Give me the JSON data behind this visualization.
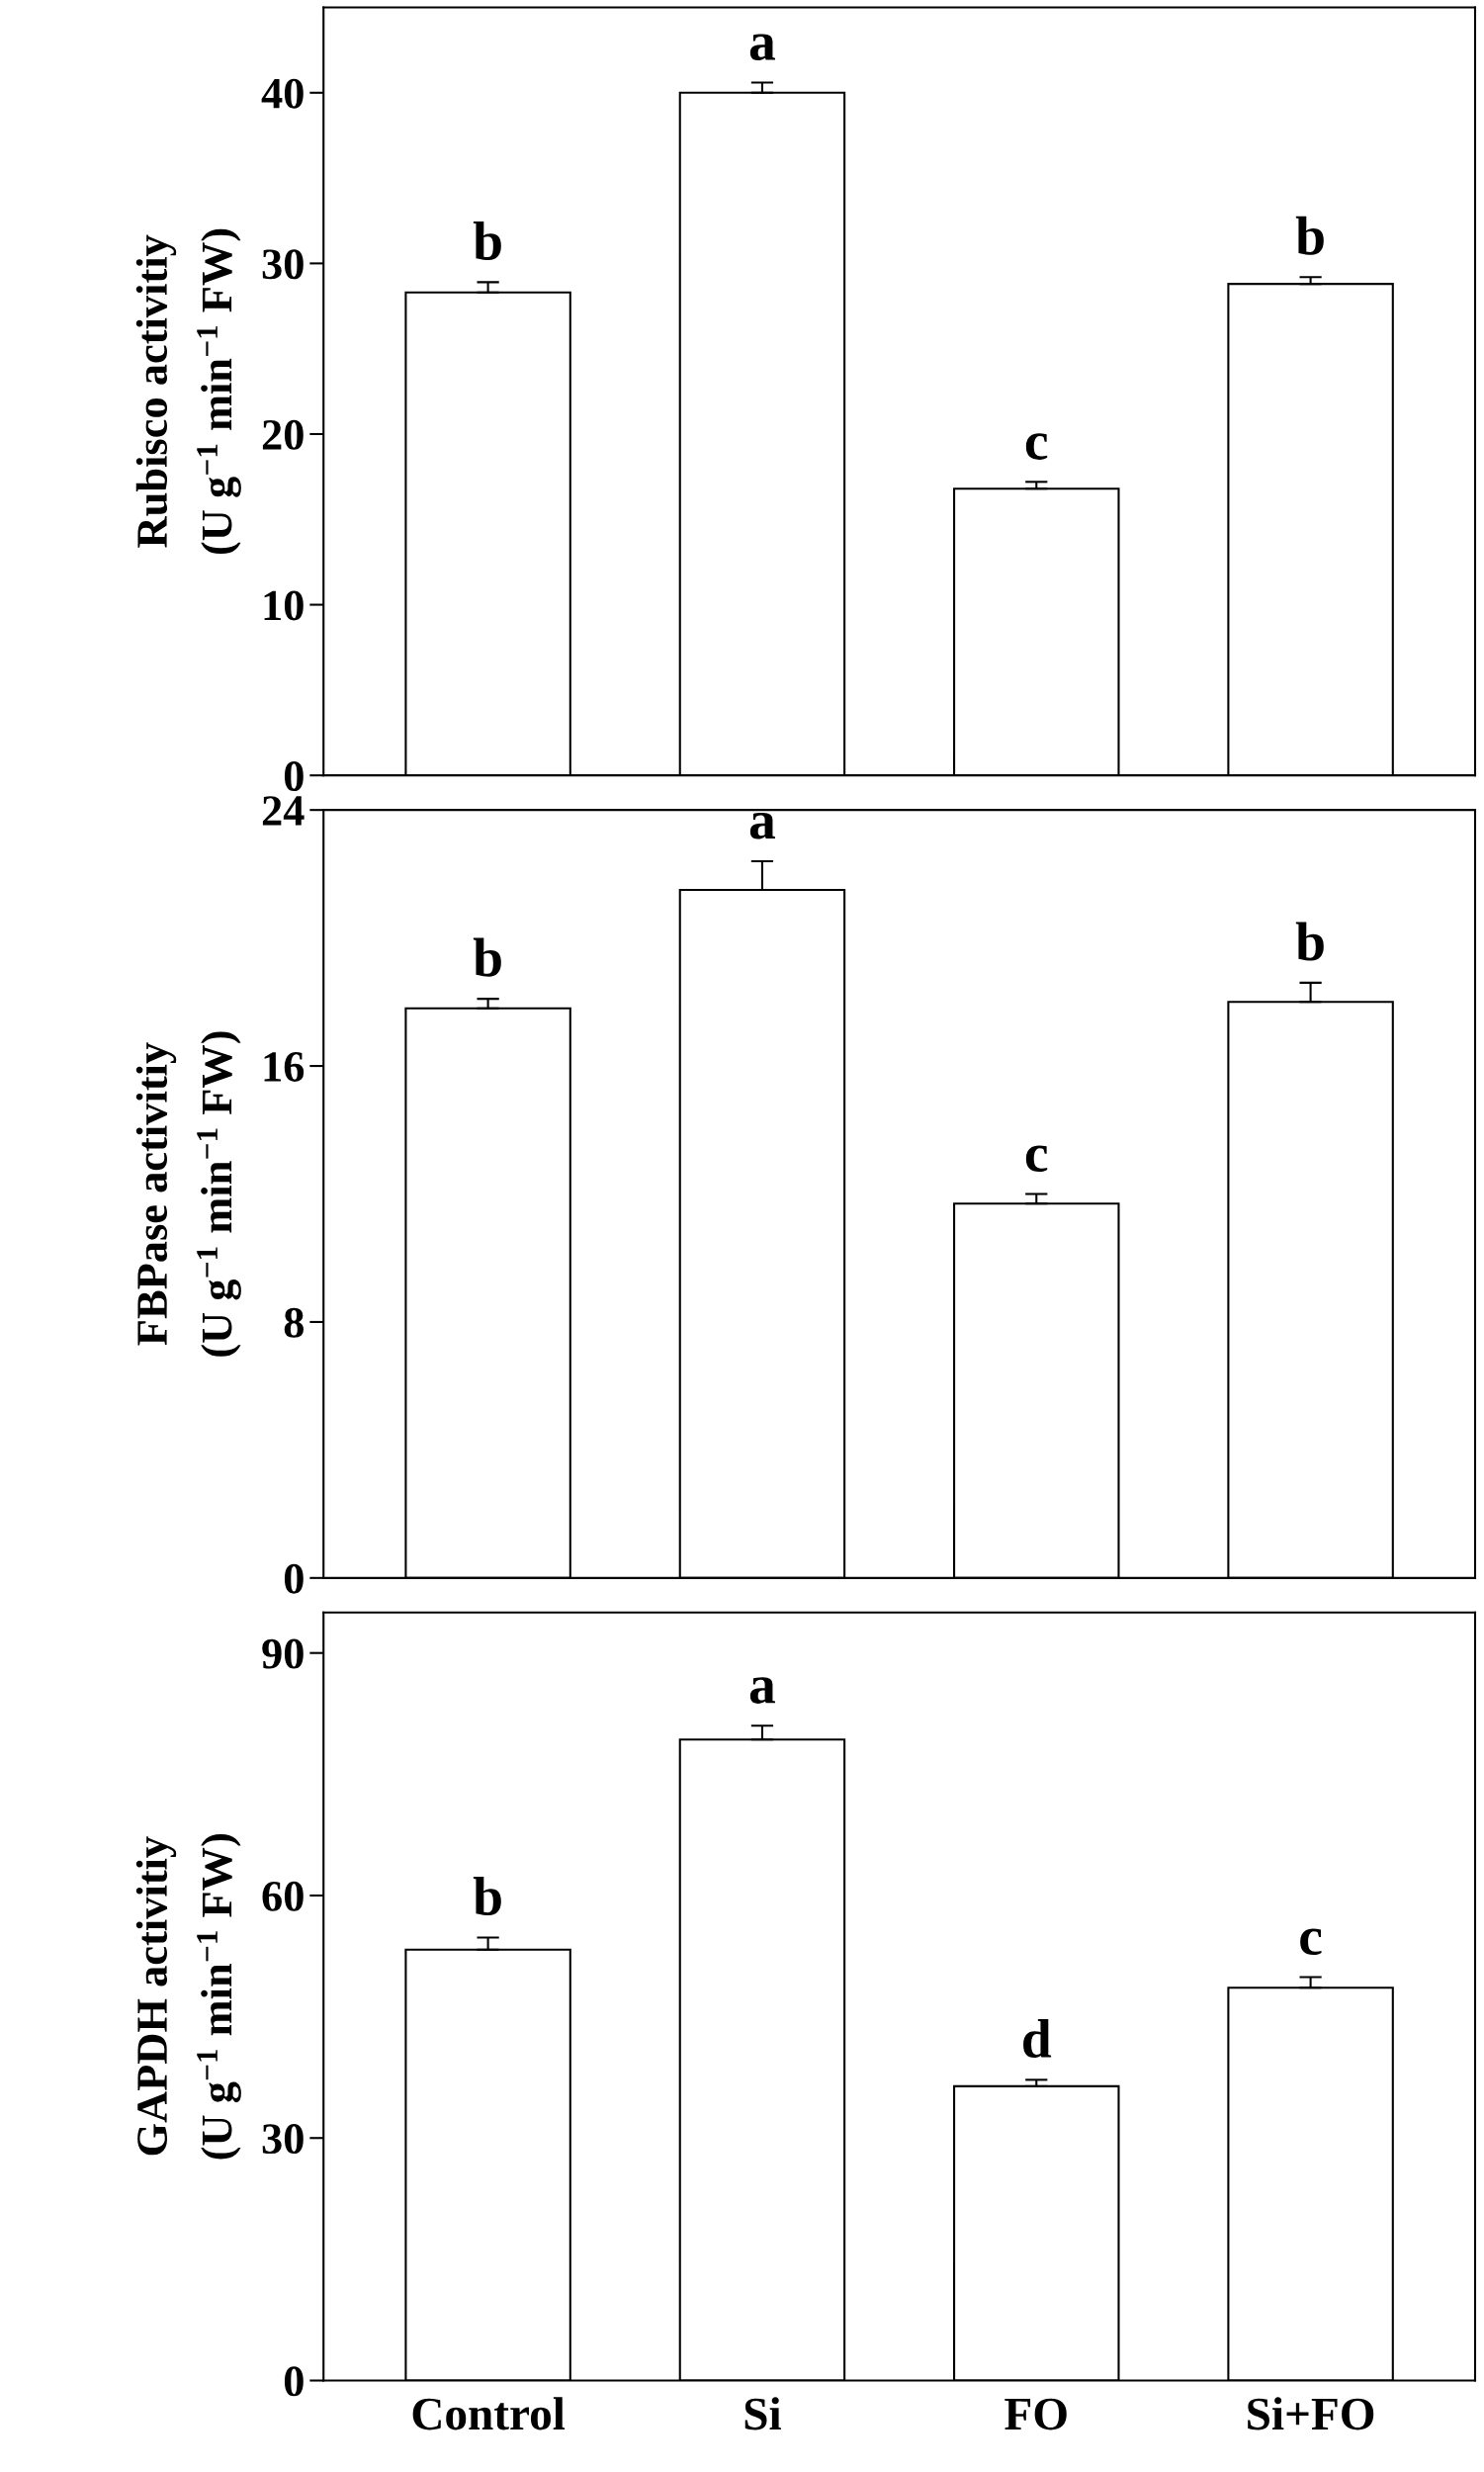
{
  "chart_data": [
    {
      "type": "bar",
      "categories": [
        "Control",
        "Si",
        "FO",
        "Si+FO"
      ],
      "values": [
        28.3,
        40.0,
        16.8,
        28.8
      ],
      "errors": [
        0.6,
        0.6,
        0.4,
        0.4
      ],
      "color": "#ffffff",
      "ylabel": "Rubisco activitiy\n(U g$^{−1}$ min$^{−1}$ FW)",
      "ylim": [
        0,
        45
      ],
      "yticks": [
        0,
        10,
        20,
        30,
        40
      ],
      "tick_labels": "y",
      "annotations": [
        {
          "text": "b",
          "x": "Control",
          "y": 28.9
        },
        {
          "text": "a",
          "x": "Si",
          "y": 40.6
        },
        {
          "text": "c",
          "x": "FO",
          "y": 17.2
        },
        {
          "text": "b",
          "x": "Si+FO",
          "y": 29.2
        }
      ]
    },
    {
      "type": "bar",
      "categories": [
        "Control",
        "Si",
        "FO",
        "Si+FO"
      ],
      "values": [
        17.8,
        21.5,
        11.7,
        18.0
      ],
      "errors": [
        0.3,
        0.9,
        0.3,
        0.6
      ],
      "color": "#ffffff",
      "ylabel": "FBPase activitiy\n(U g$^{−1}$ min$^{−1}$ FW)",
      "ylim": [
        0,
        24
      ],
      "yticks": [
        0,
        8,
        16,
        24
      ],
      "tick_labels": "y",
      "annotations": [
        {
          "text": "b",
          "x": "Control",
          "y": 18.1
        },
        {
          "text": "a",
          "x": "Si",
          "y": 22.4
        },
        {
          "text": "c",
          "x": "FO",
          "y": 12.0
        },
        {
          "text": "b",
          "x": "Si+FO",
          "y": 18.6
        }
      ]
    },
    {
      "type": "bar",
      "categories": [
        "Control",
        "Si",
        "FO",
        "Si+FO"
      ],
      "values": [
        53.3,
        79.3,
        36.4,
        48.6
      ],
      "errors": [
        1.5,
        1.7,
        0.8,
        1.3
      ],
      "color": "#ffffff",
      "ylabel": "GAPDH activitiy\n(U g$^{−1}$ min$^{−1}$ FW)",
      "ylim": [
        0,
        95
      ],
      "yticks": [
        0,
        30,
        60,
        90
      ],
      "annotations": [
        {
          "text": "b",
          "x": "Control",
          "y": 54.8
        },
        {
          "text": "a",
          "x": "Si",
          "y": 81.0
        },
        {
          "text": "d",
          "x": "FO",
          "y": 37.2
        },
        {
          "text": "c",
          "x": "Si+FO",
          "y": 49.9
        }
      ]
    }
  ]
}
